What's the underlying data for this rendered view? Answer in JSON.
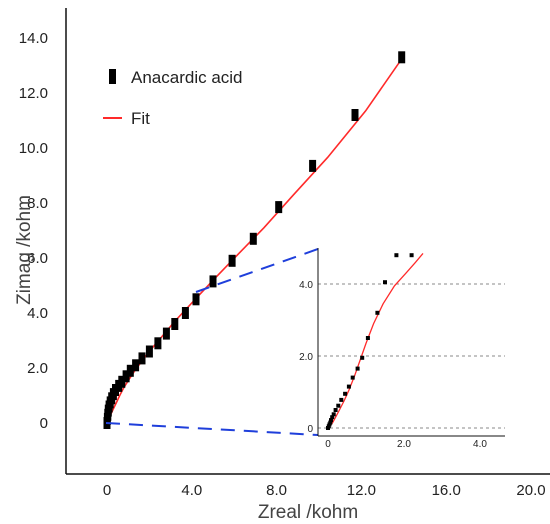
{
  "chart_data": [
    {
      "type": "scatter",
      "title": "",
      "xlabel": "Zreal /kohm",
      "ylabel": "Zimag /kohm",
      "xlim": [
        -3.0,
        20.0
      ],
      "ylim": [
        -1.8,
        14.8
      ],
      "x_ticks": [
        "0",
        "4.0",
        "8.0",
        "12.0",
        "16.0",
        "20.0"
      ],
      "x_tick_values": [
        0,
        4,
        8,
        12,
        16,
        20
      ],
      "y_ticks": [
        "0",
        "2.0",
        "4.0",
        "6.0",
        "8.0",
        "10.0",
        "12.0",
        "14.0"
      ],
      "y_tick_values": [
        0,
        2,
        4,
        6,
        8,
        10,
        12,
        14
      ],
      "grid": false,
      "legend_position": "top-left",
      "series": [
        {
          "name": "Anacardic acid",
          "kind": "markers",
          "color": "#000000",
          "x": [
            0.0,
            0.02,
            0.04,
            0.06,
            0.1,
            0.15,
            0.22,
            0.3,
            0.4,
            0.55,
            0.7,
            0.9,
            1.1,
            1.35,
            1.65,
            2.0,
            2.4,
            2.8,
            3.2,
            3.7,
            4.2,
            5.0,
            5.9,
            6.9,
            8.1,
            9.7,
            11.7,
            13.9
          ],
          "y": [
            0.0,
            0.15,
            0.3,
            0.45,
            0.6,
            0.75,
            0.9,
            1.05,
            1.2,
            1.35,
            1.5,
            1.7,
            1.9,
            2.1,
            2.35,
            2.6,
            2.9,
            3.25,
            3.6,
            4.0,
            4.5,
            5.15,
            5.9,
            6.7,
            7.85,
            9.35,
            11.2,
            13.3
          ]
        },
        {
          "name": "Fit",
          "kind": "line",
          "color": "#ff2a2a",
          "x": [
            0.0,
            0.05,
            0.12,
            0.2,
            0.32,
            0.45,
            0.6,
            0.8,
            1.05,
            1.35,
            1.7,
            2.1,
            2.6,
            3.2,
            3.8,
            4.4,
            5.2,
            6.2,
            7.4,
            8.8,
            10.4,
            12.2,
            14.0
          ],
          "y": [
            0.0,
            0.1,
            0.2,
            0.35,
            0.55,
            0.75,
            1.0,
            1.3,
            1.6,
            1.95,
            2.3,
            2.7,
            3.15,
            3.7,
            4.2,
            4.7,
            5.35,
            6.15,
            7.1,
            8.3,
            9.65,
            11.35,
            13.35
          ]
        }
      ]
    },
    {
      "type": "scatter",
      "title": "",
      "xlabel": "",
      "ylabel": "",
      "xlim": [
        -0.1,
        4.8
      ],
      "ylim": [
        -0.2,
        4.9
      ],
      "x_ticks": [
        "0",
        "2.0",
        "4.0"
      ],
      "x_tick_values": [
        0,
        2,
        4
      ],
      "y_ticks": [
        "0",
        "2.0",
        "4.0"
      ],
      "y_tick_values": [
        0,
        2,
        4
      ],
      "grid": true,
      "series": [
        {
          "name": "Anacardic acid",
          "kind": "markers",
          "color": "#000000",
          "x": [
            0.0,
            0.02,
            0.04,
            0.06,
            0.08,
            0.11,
            0.15,
            0.2,
            0.27,
            0.35,
            0.45,
            0.55,
            0.65,
            0.78,
            0.9,
            1.05,
            1.3,
            1.5,
            1.8,
            2.2
          ],
          "y": [
            0.0,
            0.05,
            0.1,
            0.15,
            0.22,
            0.3,
            0.38,
            0.5,
            0.62,
            0.78,
            0.95,
            1.15,
            1.4,
            1.65,
            1.95,
            2.5,
            3.2,
            4.05,
            4.8,
            4.8
          ]
        },
        {
          "name": "Fit",
          "kind": "line",
          "color": "#ff2a2a",
          "x": [
            0.0,
            0.05,
            0.12,
            0.2,
            0.3,
            0.42,
            0.55,
            0.7,
            0.85,
            1.0,
            1.2,
            1.45,
            1.75,
            2.05,
            2.3,
            2.5
          ],
          "y": [
            0.0,
            0.05,
            0.15,
            0.3,
            0.5,
            0.75,
            1.05,
            1.45,
            1.9,
            2.35,
            2.9,
            3.45,
            3.95,
            4.3,
            4.6,
            4.85
          ]
        }
      ]
    }
  ],
  "legend": {
    "items": [
      {
        "label": "Anacardic acid",
        "symbol": "square-marker"
      },
      {
        "label": "Fit",
        "symbol": "red-line"
      }
    ]
  }
}
